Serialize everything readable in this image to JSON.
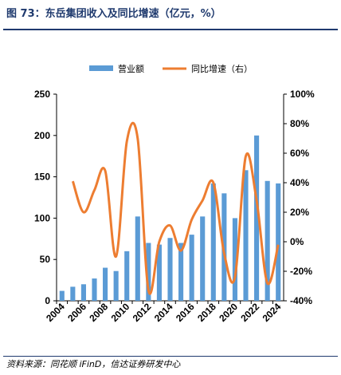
{
  "figure": {
    "title": "图 73：东岳集团收入及同比增速（亿元，%）",
    "source": "资料来源：同花顺 iFinD，信达证券研发中心"
  },
  "chart_data": {
    "type": "bar+line",
    "categories": [
      "2004",
      "2005",
      "2006",
      "2007",
      "2008",
      "2009",
      "2010",
      "2011",
      "2012",
      "2013",
      "2014",
      "2015",
      "2016",
      "2017",
      "2018",
      "2019",
      "2020",
      "2021",
      "2022",
      "2023",
      "2024"
    ],
    "x_tick_labels": [
      "2004",
      "2006",
      "2008",
      "2010",
      "2012",
      "2014",
      "2016",
      "2018",
      "2020",
      "2022",
      "2024"
    ],
    "series": [
      {
        "name": "营业额",
        "type": "bar",
        "axis": "left",
        "color": "#5b9bd5",
        "values": [
          12,
          17,
          20,
          27,
          40,
          36,
          60,
          102,
          70,
          68,
          76,
          70,
          80,
          102,
          142,
          130,
          100,
          158,
          200,
          145,
          142
        ]
      },
      {
        "name": "同比增速（右）",
        "type": "line",
        "axis": "right",
        "color": "#ed7d31",
        "values": [
          null,
          41,
          20,
          35,
          48,
          -10,
          68,
          70,
          -33,
          0,
          11,
          -6,
          15,
          28,
          40,
          -8,
          -24,
          58,
          28,
          -28,
          -2
        ]
      }
    ],
    "y_left": {
      "min": 0,
      "max": 250,
      "ticks": [
        0,
        50,
        100,
        150,
        200,
        250
      ]
    },
    "y_right": {
      "min": -40,
      "max": 100,
      "ticks": [
        "-40%",
        "-20%",
        "0%",
        "20%",
        "40%",
        "60%",
        "80%",
        "100%"
      ]
    },
    "legend_position": "top-center",
    "grid": false
  }
}
